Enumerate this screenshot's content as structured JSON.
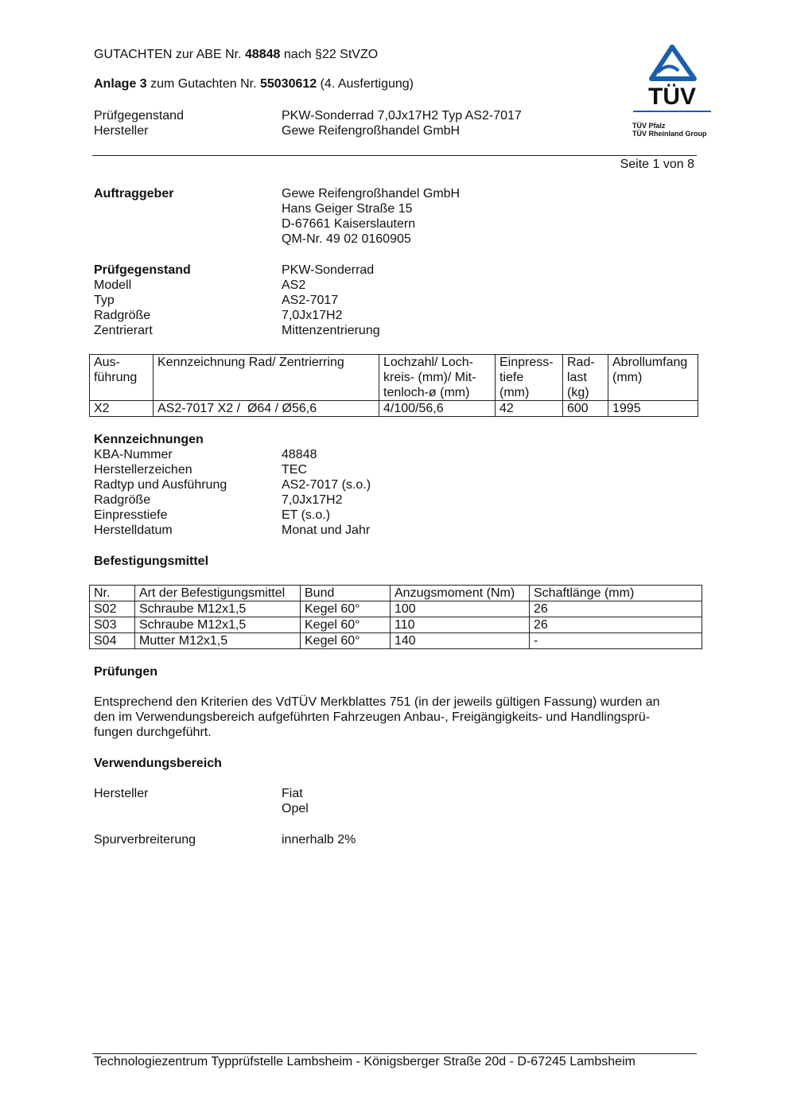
{
  "header": {
    "line1_pre": "GUTACHTEN zur ABE Nr. ",
    "line1_bold": "48848",
    "line1_post": " nach §22 StVZO",
    "line2_bold1": "Anlage 3",
    "line2_mid": " zum Gutachten Nr. ",
    "line2_bold2": "55030612",
    "line2_post": " (4. Ausfertigung)",
    "rows": [
      {
        "label": "Prüfgegenstand",
        "value": "PKW-Sonderrad 7,0Jx17H2 Typ AS2-7017"
      },
      {
        "label": "Hersteller",
        "value": "Gewe Reifengroßhandel GmbH"
      }
    ],
    "page": "Seite 1 von 8"
  },
  "logo": {
    "text": "TÜV",
    "line1": "TÜV Pfalz",
    "line2": "TÜV Rheinland Group",
    "color": "#1a5eab"
  },
  "auftraggeber": {
    "label": "Auftraggeber",
    "lines": [
      "Gewe Reifengroßhandel GmbH",
      "Hans Geiger Straße 15",
      "D-67661 Kaiserslautern",
      "QM-Nr. 49 02 0160905"
    ]
  },
  "pruefgegenstand": {
    "rows": [
      {
        "label": "Prüfgegenstand",
        "value": "PKW-Sonderrad"
      },
      {
        "label": "Modell",
        "value": "AS2"
      },
      {
        "label": "Typ",
        "value": "AS2-7017"
      },
      {
        "label": "Radgröße",
        "value": "7,0Jx17H2"
      },
      {
        "label": "Zentrierart",
        "value": "Mittenzentrierung"
      }
    ]
  },
  "table1": {
    "headers": [
      "Aus-\nführung",
      "Kennzeichnung Rad/ Zentrierring",
      "Lochzahl/ Loch-\nkreis- (mm)/ Mit-\ntenloch-ø (mm)",
      "Einpress-\ntiefe\n(mm)",
      "Rad-\nlast\n(kg)",
      "Abrollumfang\n(mm)"
    ],
    "rows": [
      [
        "X2",
        "AS2-7017 X2 /  Ø64 / Ø56,6",
        "4/100/56,6",
        "42",
        "600",
        "1995"
      ]
    ]
  },
  "kennzeichnungen": {
    "title": "Kennzeichnungen",
    "rows": [
      {
        "label": "KBA-Nummer",
        "value": "48848"
      },
      {
        "label": "Herstellerzeichen",
        "value": "TEC"
      },
      {
        "label": "Radtyp und Ausführung",
        "value": "AS2-7017 (s.o.)"
      },
      {
        "label": "Radgröße",
        "value": "7,0Jx17H2"
      },
      {
        "label": "Einpresstiefe",
        "value": "ET (s.o.)"
      },
      {
        "label": "Herstelldatum",
        "value": "Monat und Jahr"
      }
    ]
  },
  "befestigung": {
    "title": "Befestigungsmittel",
    "headers": [
      "Nr.",
      "Art der Befestigungsmittel",
      "Bund",
      "Anzugsmoment (Nm)",
      "Schaftlänge (mm)"
    ],
    "rows": [
      [
        "S02",
        "Schraube M12x1,5",
        "Kegel 60°",
        "100",
        "26"
      ],
      [
        "S03",
        "Schraube M12x1,5",
        "Kegel 60°",
        "110",
        "26"
      ],
      [
        "S04",
        "Mutter M12x1,5",
        "Kegel 60°",
        "140",
        "-"
      ]
    ]
  },
  "pruefungen": {
    "title": "Prüfungen",
    "lines": [
      "Entsprechend den Kriterien des VdTÜV Merkblattes 751 (in der jeweils gültigen Fassung) wurden an",
      "den im Verwendungsbereich aufgeführten Fahrzeugen Anbau-, Freigängigkeits- und Handlingsprü-",
      "fungen durchgeführt."
    ]
  },
  "verwendung": {
    "title": "Verwendungsbereich",
    "hersteller_label": "Hersteller",
    "hersteller": [
      "Fiat",
      "Opel"
    ],
    "spur_label": "Spurverbreiterung",
    "spur_value": "innerhalb 2%"
  },
  "footer": "Technologiezentrum Typprüfstelle Lambsheim - Königsberger Straße 20d - D-67245 Lambsheim"
}
